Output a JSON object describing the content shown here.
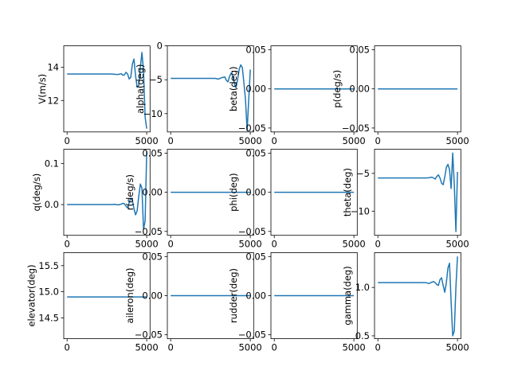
{
  "figure": {
    "line_color": "#1f77b4"
  },
  "chart_data": [
    {
      "type": "line",
      "ylabel": "V(m/s)",
      "xlim": [
        -210,
        5210
      ],
      "xticks": [
        0,
        5000
      ],
      "ylim": [
        10.1,
        15.3
      ],
      "yticks": [
        12,
        14
      ],
      "x": [
        0,
        500,
        1000,
        1500,
        2000,
        2500,
        2800,
        3000,
        3200,
        3400,
        3500,
        3600,
        3700,
        3800,
        3900,
        4000,
        4100,
        4200,
        4300,
        4400,
        4500,
        4600,
        4700,
        4800,
        4900,
        5000
      ],
      "y": [
        13.6,
        13.6,
        13.6,
        13.6,
        13.6,
        13.6,
        13.6,
        13.58,
        13.57,
        13.62,
        13.52,
        13.55,
        13.7,
        13.6,
        13.3,
        13.4,
        14.2,
        14.5,
        13.5,
        12.8,
        12.9,
        14.0,
        14.9,
        13.8,
        11.0,
        10.3
      ]
    },
    {
      "type": "line",
      "ylabel": "alpha(deg)",
      "xlim": [
        -210,
        5210
      ],
      "xticks": [
        0,
        5000
      ],
      "ylim": [
        -12.7,
        0
      ],
      "yticks": [
        -10,
        -5,
        0
      ],
      "x": [
        0,
        500,
        1000,
        1500,
        2000,
        2500,
        2800,
        3000,
        3200,
        3400,
        3500,
        3600,
        3700,
        3800,
        3900,
        4000,
        4100,
        4200,
        4300,
        4400,
        4500,
        4600,
        4700,
        4800,
        4900,
        5000
      ],
      "y": [
        -4.8,
        -4.8,
        -4.8,
        -4.8,
        -4.8,
        -4.8,
        -4.8,
        -4.9,
        -4.7,
        -4.6,
        -5.1,
        -5.3,
        -4.5,
        -4.0,
        -4.5,
        -5.5,
        -6.2,
        -5.0,
        -3.5,
        -2.8,
        -3.2,
        -5.5,
        -8.0,
        -12.5,
        -8.0,
        -3.5
      ]
    },
    {
      "type": "line",
      "ylabel": "beta(deg)",
      "xlim": [
        -210,
        5210
      ],
      "xticks": [
        0,
        5000
      ],
      "ylim": [
        -0.055,
        0.055
      ],
      "yticks": [
        -0.05,
        0.0,
        0.05
      ],
      "x": [
        0,
        5000
      ],
      "y": [
        0,
        0
      ]
    },
    {
      "type": "line",
      "ylabel": "p(deg/s)",
      "xlim": [
        -210,
        5210
      ],
      "xticks": [
        0,
        5000
      ],
      "ylim": [
        -0.055,
        0.055
      ],
      "yticks": [
        -0.05,
        0.0,
        0.05
      ],
      "x": [
        0,
        5000
      ],
      "y": [
        0,
        0
      ]
    },
    {
      "type": "line",
      "ylabel": "q(deg/s)",
      "xlim": [
        -210,
        5210
      ],
      "xticks": [
        0,
        5000
      ],
      "ylim": [
        -0.075,
        0.135
      ],
      "yticks": [
        0.0,
        0.1
      ],
      "x": [
        0,
        500,
        1000,
        1500,
        2000,
        2500,
        2800,
        3000,
        3200,
        3400,
        3500,
        3600,
        3700,
        3800,
        3900,
        4000,
        4100,
        4200,
        4300,
        4400,
        4500,
        4600,
        4700,
        4800,
        4900,
        5000
      ],
      "y": [
        0,
        0,
        0,
        0,
        0,
        0,
        0,
        0.0005,
        -0.0008,
        0.001,
        0.003,
        0.002,
        -0.004,
        -0.008,
        0.005,
        0.015,
        0.01,
        -0.01,
        -0.025,
        -0.015,
        0.02,
        0.05,
        0.04,
        -0.06,
        -0.04,
        0.13
      ]
    },
    {
      "type": "line",
      "ylabel": "r(deg/s)",
      "xlim": [
        -210,
        5210
      ],
      "xticks": [
        0,
        5000
      ],
      "ylim": [
        -0.055,
        0.055
      ],
      "yticks": [
        -0.05,
        0.0,
        0.05
      ],
      "x": [
        0,
        5000
      ],
      "y": [
        0,
        0
      ]
    },
    {
      "type": "line",
      "ylabel": "phi(deg)",
      "xlim": [
        -210,
        5210
      ],
      "xticks": [
        0,
        5000
      ],
      "ylim": [
        -0.055,
        0.055
      ],
      "yticks": [
        -0.05,
        0.0,
        0.05
      ],
      "x": [
        0,
        5000
      ],
      "y": [
        0,
        0
      ]
    },
    {
      "type": "line",
      "ylabel": "theta(deg)",
      "xlim": [
        -210,
        5210
      ],
      "xticks": [
        0,
        5000
      ],
      "ylim": [
        -13.2,
        -1.8
      ],
      "yticks": [
        -10,
        -5
      ],
      "x": [
        0,
        500,
        1000,
        1500,
        2000,
        2500,
        2800,
        3000,
        3200,
        3400,
        3500,
        3600,
        3700,
        3800,
        3900,
        4000,
        4100,
        4200,
        4300,
        4400,
        4500,
        4600,
        4700,
        4800,
        4900,
        5000
      ],
      "y": [
        -5.6,
        -5.6,
        -5.6,
        -5.6,
        -5.6,
        -5.6,
        -5.6,
        -5.6,
        -5.58,
        -5.5,
        -5.62,
        -5.75,
        -5.4,
        -5.2,
        -5.6,
        -6.3,
        -6.5,
        -5.5,
        -4.2,
        -3.8,
        -4.5,
        -7.0,
        -2.3,
        -6.5,
        -12.7,
        -4.8
      ]
    },
    {
      "type": "line",
      "ylabel": "elevator(deg)",
      "xlim": [
        -210,
        5210
      ],
      "xticks": [
        0,
        5000
      ],
      "ylim": [
        14.1,
        15.75
      ],
      "yticks": [
        14.5,
        15.0,
        15.5
      ],
      "x": [
        0,
        5000
      ],
      "y": [
        14.9,
        14.9
      ]
    },
    {
      "type": "line",
      "ylabel": "aileron(deg)",
      "xlim": [
        -210,
        5210
      ],
      "xticks": [
        0,
        5000
      ],
      "ylim": [
        -0.055,
        0.055
      ],
      "yticks": [
        -0.05,
        0.0,
        0.05
      ],
      "x": [
        0,
        5000
      ],
      "y": [
        0,
        0
      ]
    },
    {
      "type": "line",
      "ylabel": "rudder(deg)",
      "xlim": [
        -210,
        5210
      ],
      "xticks": [
        0,
        5000
      ],
      "ylim": [
        -0.055,
        0.055
      ],
      "yticks": [
        -0.05,
        0.0,
        0.05
      ],
      "x": [
        0,
        5000
      ],
      "y": [
        0,
        0
      ]
    },
    {
      "type": "line",
      "ylabel": "gamma(deg)",
      "xlim": [
        -210,
        5210
      ],
      "xticks": [
        0,
        5000
      ],
      "ylim": [
        0.47,
        1.36
      ],
      "yticks": [
        0.5,
        1.0
      ],
      "x": [
        0,
        500,
        1000,
        1500,
        2000,
        2500,
        2800,
        3000,
        3200,
        3400,
        3500,
        3600,
        3700,
        3800,
        3900,
        4000,
        4100,
        4200,
        4300,
        4400,
        4500,
        4600,
        4700,
        4800,
        4900,
        5000
      ],
      "y": [
        1.05,
        1.05,
        1.05,
        1.05,
        1.05,
        1.05,
        1.05,
        1.05,
        1.04,
        1.055,
        1.06,
        1.05,
        1.03,
        1.02,
        1.08,
        1.1,
        1.02,
        0.95,
        1.05,
        1.2,
        1.25,
        0.85,
        0.5,
        0.55,
        1.0,
        1.32
      ]
    }
  ]
}
